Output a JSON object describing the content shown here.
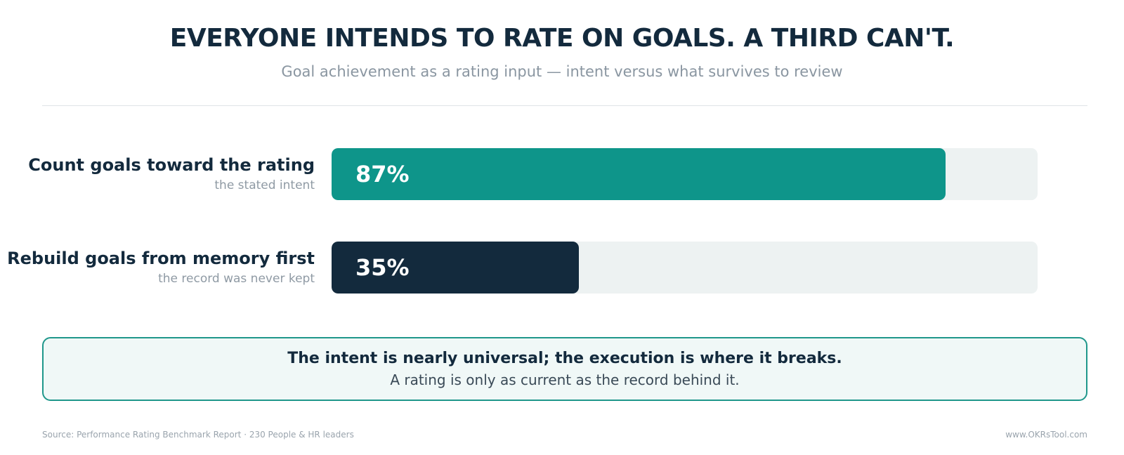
{
  "title": "EVERYONE INTENDS TO RATE ON GOALS. A THIRD CAN'T.",
  "subtitle": "Goal achievement as a rating input — intent versus what survives to review",
  "chart_data": {
    "type": "bar",
    "orientation": "horizontal",
    "value_unit": "%",
    "xlim": [
      0,
      100
    ],
    "grid": false,
    "categories": [
      "Count goals toward the rating",
      "Rebuild goals from memory first"
    ],
    "sublabels": [
      "the stated intent",
      "the record was never kept"
    ],
    "values": [
      87,
      35
    ],
    "value_labels": [
      "87%",
      "35%"
    ],
    "colors": [
      "#0e958a",
      "#132a3d"
    ],
    "track_color": "#edf2f2"
  },
  "callout": {
    "headline": "The intent is nearly universal; the execution is where it breaks.",
    "body": "A rating is only as current as the record behind it."
  },
  "footer": {
    "source": "Source: Performance Rating Benchmark Report · 230 People & HR leaders",
    "site": "www.OKRsTool.com"
  }
}
